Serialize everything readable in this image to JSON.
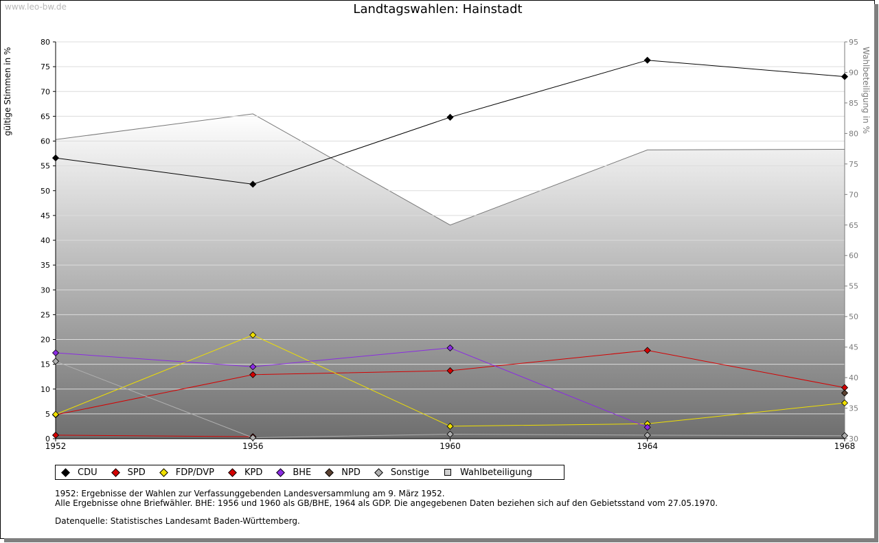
{
  "watermark": "www.leo-bw.de",
  "chart_data": {
    "type": "line",
    "title": "Landtagswahlen: Hainstadt",
    "ylabel": "gültige Stimmen in %",
    "ylabel_right": "Wahlbeteiligung in %",
    "x": [
      "1952",
      "1956",
      "1960",
      "1964",
      "1968"
    ],
    "ylim": [
      0,
      80
    ],
    "yticks": [
      "0",
      "5",
      "10",
      "15",
      "20",
      "25",
      "30",
      "35",
      "40",
      "45",
      "50",
      "55",
      "60",
      "65",
      "70",
      "75",
      "80"
    ],
    "ylim_right": [
      30,
      95
    ],
    "yticks_right": [
      "30",
      "35",
      "40",
      "45",
      "50",
      "55",
      "60",
      "65",
      "70",
      "75",
      "80",
      "85",
      "90",
      "95"
    ],
    "grid": true,
    "legend_placement": "bottom",
    "series": [
      {
        "name": "CDU",
        "color": "#000000",
        "values": [
          56.6,
          51.3,
          64.8,
          76.3,
          73.0
        ]
      },
      {
        "name": "SPD",
        "color": "#d40000",
        "values": [
          4.8,
          12.9,
          13.7,
          17.8,
          10.3
        ]
      },
      {
        "name": "FDP/DVP",
        "color": "#f0e000",
        "values": [
          4.9,
          20.9,
          2.5,
          3.0,
          7.2
        ]
      },
      {
        "name": "KPD",
        "color": "#d40000",
        "values": [
          0.7,
          0.4,
          null,
          null,
          null
        ]
      },
      {
        "name": "BHE",
        "color": "#8a2be2",
        "values": [
          17.3,
          14.5,
          18.3,
          2.3,
          null
        ]
      },
      {
        "name": "NPD",
        "color": "#5a4030",
        "values": [
          null,
          null,
          null,
          null,
          9.2
        ]
      },
      {
        "name": "Sonstige",
        "color": "#b0b0b0",
        "values": [
          15.6,
          0.2,
          0.9,
          0.7,
          0.6
        ]
      }
    ],
    "area_series": {
      "name": "Wahlbeteiligung",
      "axis": "right",
      "values": [
        79.0,
        83.2,
        65.0,
        77.3,
        77.4
      ]
    }
  },
  "notes": {
    "line1": "1952: Ergebnisse der Wahlen zur Verfassunggebenden Landesversammlung am 9. März 1952.",
    "line2": "Alle Ergebnisse ohne Briefwähler. BHE: 1956 und 1960 als GB/BHE, 1964 als GDP. Die angegebenen Daten beziehen sich auf den Gebietsstand vom 27.05.1970.",
    "source": "Datenquelle: Statistisches Landesamt Baden-Württemberg."
  }
}
